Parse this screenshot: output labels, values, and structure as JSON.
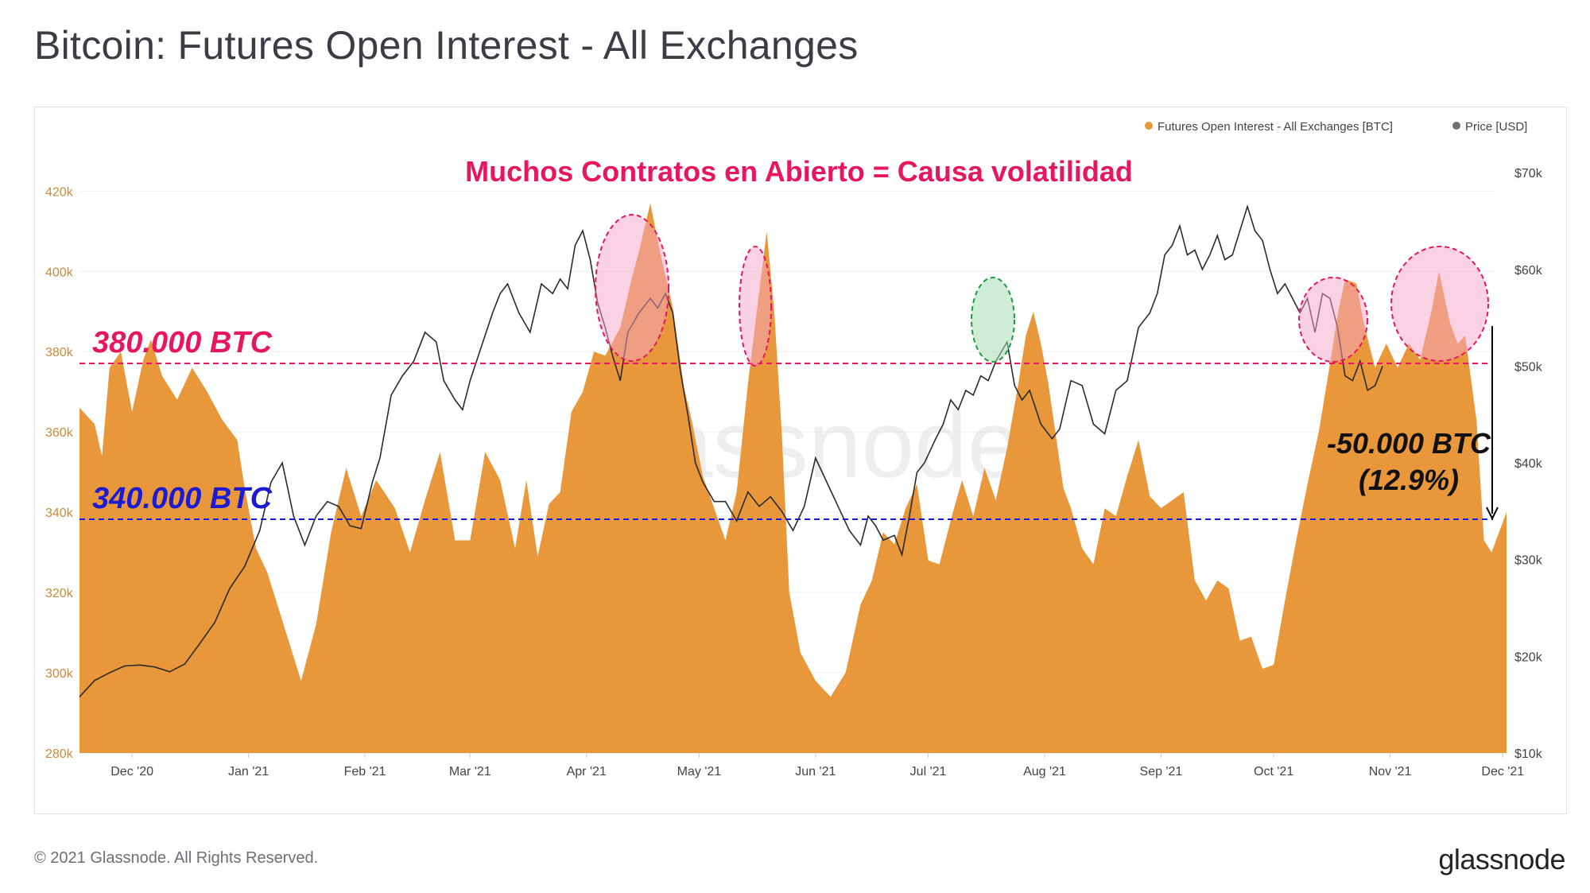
{
  "title": "Bitcoin: Futures Open Interest - All Exchanges",
  "footer": {
    "copyright": "© 2021 Glassnode. All Rights Reserved.",
    "brand": "glassnode"
  },
  "watermark": "glassnode",
  "colors": {
    "oi": "#e8973a",
    "price": "#2b2b2b",
    "annotation_red": "#e8175d",
    "annotation_blue": "#1b1bd1",
    "grid": "#eef0f2"
  },
  "chart_data": {
    "type": "area",
    "title": "Bitcoin: Futures Open Interest - All Exchanges",
    "legend": {
      "placement": "top-right",
      "entries": [
        "Futures Open Interest - All Exchanges [BTC]",
        "Price [USD]"
      ]
    },
    "x_ticks": [
      "Dec '20",
      "Jan '21",
      "Feb '21",
      "Mar '21",
      "Apr '21",
      "May '21",
      "Jun '21",
      "Jul '21",
      "Aug '21",
      "Sep '21",
      "Oct '21",
      "Nov '21",
      "Dec '21"
    ],
    "y_left": {
      "ticks": [
        "280k",
        "300k",
        "320k",
        "340k",
        "360k",
        "380k",
        "400k",
        "420k"
      ],
      "ylim": [
        280000,
        427000
      ]
    },
    "y_right": {
      "ticks": [
        "$10k",
        "$20k",
        "$30k",
        "$40k",
        "$50k",
        "$60k",
        "$70k"
      ],
      "ylim": [
        10000,
        71000
      ]
    },
    "x_range_days": [
      -14,
      366
    ],
    "series": [
      {
        "name": "Futures Open Interest - All Exchanges [BTC]",
        "axis": "left",
        "points": [
          [
            -14,
            366000
          ],
          [
            -10,
            362000
          ],
          [
            -8,
            354000
          ],
          [
            -6,
            376000
          ],
          [
            -3,
            380000
          ],
          [
            0,
            365000
          ],
          [
            3,
            378000
          ],
          [
            5,
            383000
          ],
          [
            8,
            374000
          ],
          [
            12,
            368000
          ],
          [
            16,
            376000
          ],
          [
            20,
            370000
          ],
          [
            24,
            363000
          ],
          [
            28,
            358000
          ],
          [
            30,
            346000
          ],
          [
            33,
            331000
          ],
          [
            36,
            325000
          ],
          [
            40,
            313000
          ],
          [
            45,
            298000
          ],
          [
            49,
            312000
          ],
          [
            53,
            335000
          ],
          [
            57,
            351000
          ],
          [
            61,
            339000
          ],
          [
            65,
            348000
          ],
          [
            70,
            341000
          ],
          [
            74,
            330000
          ],
          [
            78,
            343000
          ],
          [
            82,
            355000
          ],
          [
            86,
            333000
          ],
          [
            90,
            333000
          ],
          [
            94,
            355000
          ],
          [
            98,
            348000
          ],
          [
            102,
            331000
          ],
          [
            105,
            348000
          ],
          [
            108,
            329000
          ],
          [
            111,
            342000
          ],
          [
            114,
            345000
          ],
          [
            117,
            365000
          ],
          [
            120,
            370000
          ],
          [
            123,
            380000
          ],
          [
            126,
            379000
          ],
          [
            130,
            386000
          ],
          [
            133,
            398000
          ],
          [
            135,
            405000
          ],
          [
            138,
            417000
          ],
          [
            141,
            403000
          ],
          [
            144,
            391000
          ],
          [
            147,
            371000
          ],
          [
            149,
            363000
          ],
          [
            152,
            349000
          ],
          [
            155,
            341000
          ],
          [
            158,
            333000
          ],
          [
            161,
            345000
          ],
          [
            164,
            372000
          ],
          [
            167,
            395000
          ],
          [
            169,
            410000
          ],
          [
            171,
            390000
          ],
          [
            173,
            360000
          ],
          [
            175,
            320000
          ],
          [
            178,
            305000
          ],
          [
            182,
            298000
          ],
          [
            186,
            294000
          ],
          [
            190,
            300000
          ],
          [
            194,
            317000
          ],
          [
            197,
            323000
          ],
          [
            200,
            335000
          ],
          [
            203,
            332000
          ],
          [
            206,
            341000
          ],
          [
            209,
            347000
          ],
          [
            212,
            328000
          ],
          [
            215,
            327000
          ],
          [
            218,
            338000
          ],
          [
            221,
            348000
          ],
          [
            224,
            339000
          ],
          [
            227,
            351000
          ],
          [
            230,
            343000
          ],
          [
            233,
            356000
          ],
          [
            236,
            372000
          ],
          [
            238,
            384000
          ],
          [
            240,
            390000
          ],
          [
            242,
            382000
          ],
          [
            244,
            372000
          ],
          [
            246,
            359000
          ],
          [
            248,
            346000
          ],
          [
            250,
            341000
          ],
          [
            253,
            331000
          ],
          [
            256,
            327000
          ],
          [
            259,
            341000
          ],
          [
            262,
            339000
          ],
          [
            265,
            349000
          ],
          [
            268,
            358000
          ],
          [
            271,
            344000
          ],
          [
            274,
            341000
          ],
          [
            277,
            343000
          ],
          [
            280,
            345000
          ],
          [
            283,
            323000
          ],
          [
            286,
            318000
          ],
          [
            289,
            323000
          ],
          [
            292,
            321000
          ],
          [
            295,
            308000
          ],
          [
            298,
            309000
          ],
          [
            301,
            301000
          ],
          [
            304,
            302000
          ],
          [
            307,
            318000
          ],
          [
            310,
            333000
          ],
          [
            313,
            347000
          ],
          [
            316,
            360000
          ],
          [
            319,
            377000
          ],
          [
            321,
            389000
          ],
          [
            323,
            398000
          ],
          [
            326,
            397000
          ],
          [
            328,
            387000
          ],
          [
            331,
            376000
          ],
          [
            334,
            382000
          ],
          [
            337,
            376000
          ],
          [
            340,
            382000
          ],
          [
            343,
            378000
          ],
          [
            346,
            390000
          ],
          [
            348,
            400000
          ],
          [
            351,
            387000
          ],
          [
            353,
            382000
          ],
          [
            355,
            384000
          ],
          [
            358,
            363000
          ],
          [
            360,
            333000
          ],
          [
            362,
            330000
          ],
          [
            364,
            335000
          ],
          [
            366,
            340000
          ]
        ]
      },
      {
        "name": "Price [USD]",
        "axis": "right",
        "points": [
          [
            -14,
            15800
          ],
          [
            -10,
            17500
          ],
          [
            -6,
            18300
          ],
          [
            -2,
            19000
          ],
          [
            2,
            19100
          ],
          [
            6,
            18900
          ],
          [
            10,
            18400
          ],
          [
            14,
            19200
          ],
          [
            18,
            21300
          ],
          [
            22,
            23500
          ],
          [
            26,
            27000
          ],
          [
            30,
            29300
          ],
          [
            34,
            33000
          ],
          [
            37,
            38000
          ],
          [
            40,
            40000
          ],
          [
            43,
            34500
          ],
          [
            46,
            31500
          ],
          [
            49,
            34500
          ],
          [
            52,
            36000
          ],
          [
            55,
            35500
          ],
          [
            58,
            33500
          ],
          [
            61,
            33200
          ],
          [
            64,
            38000
          ],
          [
            66,
            40500
          ],
          [
            69,
            47000
          ],
          [
            72,
            49000
          ],
          [
            75,
            50500
          ],
          [
            78,
            53500
          ],
          [
            81,
            52500
          ],
          [
            83,
            48500
          ],
          [
            86,
            46500
          ],
          [
            88,
            45500
          ],
          [
            90,
            48500
          ],
          [
            93,
            52000
          ],
          [
            96,
            55500
          ],
          [
            98,
            57500
          ],
          [
            100,
            58500
          ],
          [
            103,
            55500
          ],
          [
            106,
            53500
          ],
          [
            109,
            58500
          ],
          [
            112,
            57500
          ],
          [
            114,
            59000
          ],
          [
            116,
            58000
          ],
          [
            118,
            62500
          ],
          [
            120,
            64000
          ],
          [
            122,
            61000
          ],
          [
            124,
            56500
          ],
          [
            126,
            54000
          ],
          [
            128,
            51000
          ],
          [
            130,
            48500
          ],
          [
            132,
            53500
          ],
          [
            135,
            55500
          ],
          [
            138,
            57000
          ],
          [
            140,
            56000
          ],
          [
            142,
            57500
          ],
          [
            144,
            55500
          ],
          [
            146,
            49500
          ],
          [
            148,
            45000
          ],
          [
            150,
            40000
          ],
          [
            152,
            38000
          ],
          [
            155,
            36000
          ],
          [
            158,
            36000
          ],
          [
            161,
            34000
          ],
          [
            164,
            37000
          ],
          [
            167,
            35500
          ],
          [
            170,
            36500
          ],
          [
            173,
            35000
          ],
          [
            176,
            33000
          ],
          [
            179,
            35500
          ],
          [
            182,
            40500
          ],
          [
            185,
            38000
          ],
          [
            188,
            35500
          ],
          [
            191,
            33000
          ],
          [
            194,
            31500
          ],
          [
            196,
            34500
          ],
          [
            198,
            33500
          ],
          [
            200,
            32000
          ],
          [
            203,
            32500
          ],
          [
            205,
            30500
          ],
          [
            207,
            34500
          ],
          [
            209,
            39000
          ],
          [
            211,
            40000
          ],
          [
            214,
            42500
          ],
          [
            216,
            44000
          ],
          [
            218,
            46500
          ],
          [
            220,
            45500
          ],
          [
            222,
            47500
          ],
          [
            224,
            47000
          ],
          [
            226,
            49000
          ],
          [
            228,
            48500
          ],
          [
            230,
            50500
          ],
          [
            233,
            52500
          ],
          [
            235,
            48000
          ],
          [
            237,
            46500
          ],
          [
            239,
            47500
          ],
          [
            242,
            44000
          ],
          [
            245,
            42500
          ],
          [
            247,
            43500
          ],
          [
            250,
            48500
          ],
          [
            253,
            48000
          ],
          [
            256,
            44000
          ],
          [
            259,
            43000
          ],
          [
            262,
            47500
          ],
          [
            265,
            48500
          ],
          [
            268,
            54000
          ],
          [
            271,
            55500
          ],
          [
            273,
            57500
          ],
          [
            275,
            61500
          ],
          [
            277,
            62500
          ],
          [
            279,
            64500
          ],
          [
            281,
            61500
          ],
          [
            283,
            62000
          ],
          [
            285,
            60000
          ],
          [
            287,
            61500
          ],
          [
            289,
            63500
          ],
          [
            291,
            61000
          ],
          [
            293,
            61500
          ],
          [
            295,
            64000
          ],
          [
            297,
            66500
          ],
          [
            299,
            64000
          ],
          [
            301,
            63000
          ],
          [
            303,
            60000
          ],
          [
            305,
            57500
          ],
          [
            307,
            58500
          ],
          [
            309,
            57000
          ],
          [
            311,
            55500
          ],
          [
            313,
            57000
          ],
          [
            315,
            53500
          ],
          [
            317,
            57500
          ],
          [
            319,
            57000
          ],
          [
            321,
            54000
          ],
          [
            323,
            49000
          ],
          [
            325,
            48500
          ],
          [
            327,
            50500
          ],
          [
            329,
            47500
          ],
          [
            331,
            48000
          ],
          [
            333,
            50000
          ]
        ]
      }
    ]
  },
  "annotations": {
    "headline": "Muchos Contratos en Abierto = Causa volatilidad",
    "line_380": "380.000 BTC",
    "line_340": "340.000 BTC",
    "drop_value": "-50.000 BTC",
    "drop_percent": "(12.9%)"
  }
}
